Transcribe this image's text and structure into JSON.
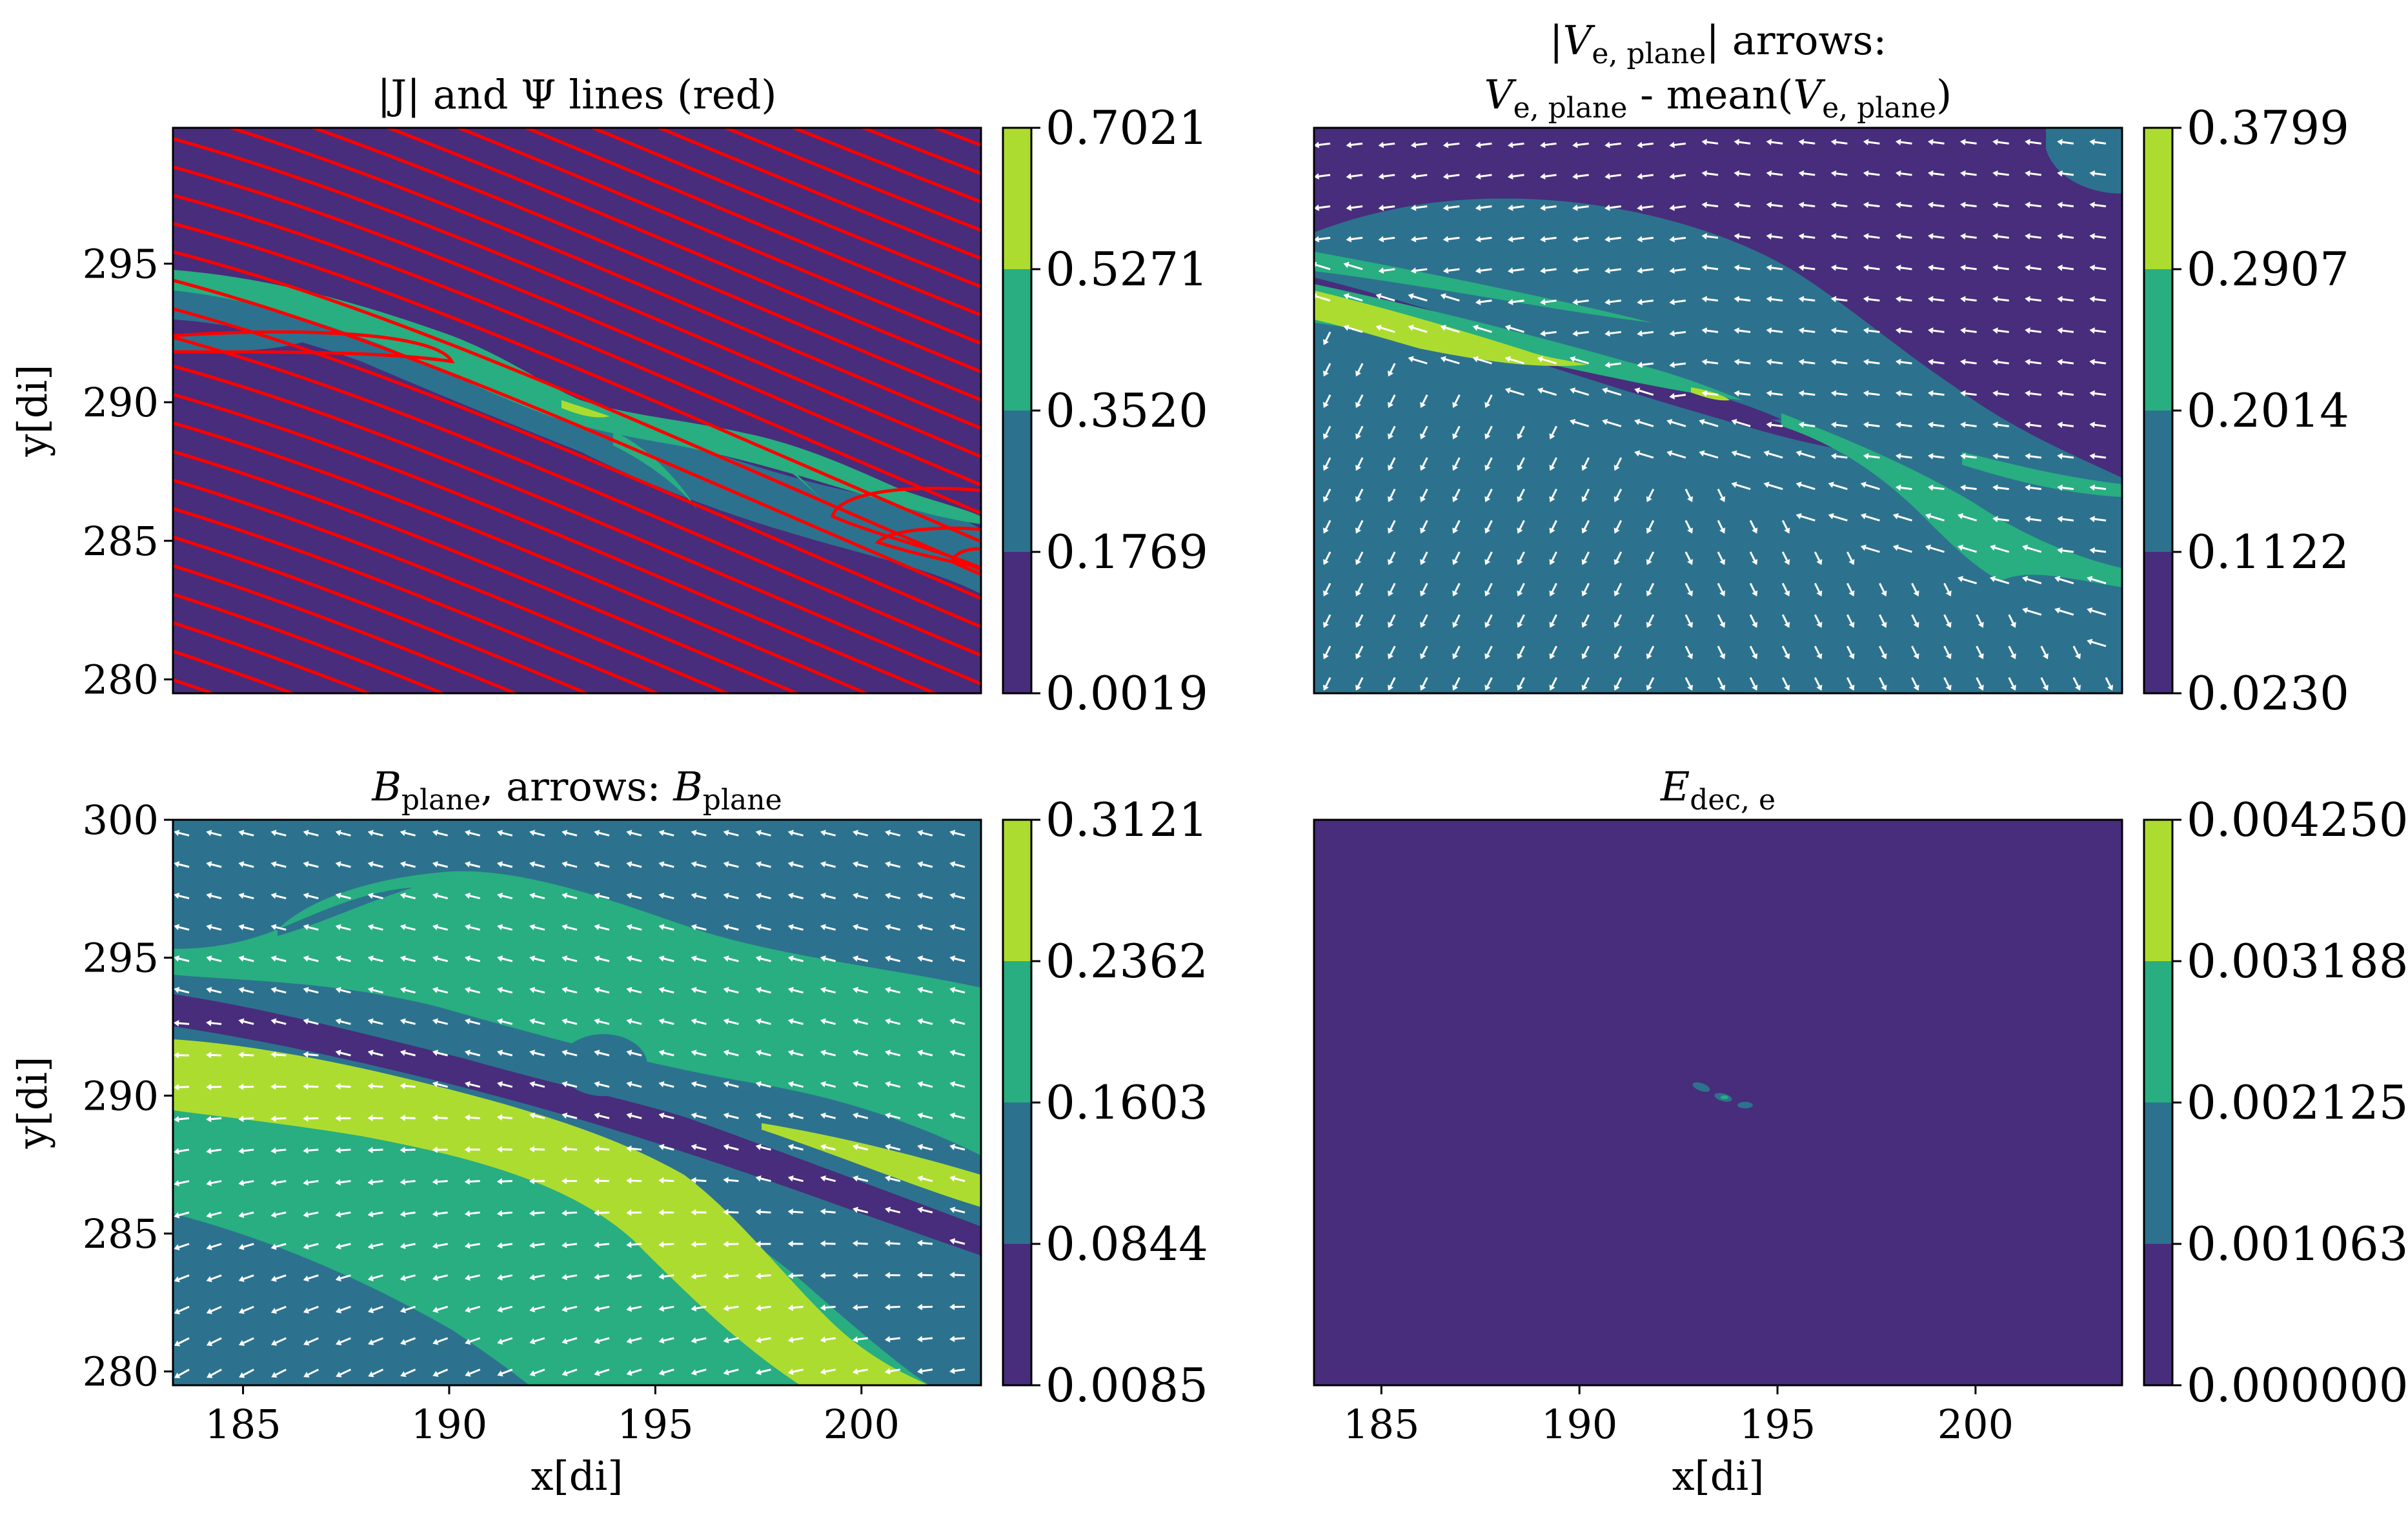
{
  "figure": {
    "colors": {
      "c0": "#472d7b",
      "c1": "#2c728e",
      "c2": "#28ae80",
      "c3": "#addc30",
      "stream": "#ff0000",
      "arrow": "#ffffff"
    }
  },
  "chart_data": [
    {
      "type": "heatmap",
      "panel": "top-left",
      "title": "|J| and Ψ lines (red)",
      "xlabel": "",
      "ylabel": "y[di]",
      "xlim": [
        183.3,
        202.9
      ],
      "ylim": [
        279.5,
        299.9
      ],
      "x_ticks": [],
      "y_ticks": [
        "280",
        "285",
        "290",
        "295"
      ],
      "colorbar_ticks": [
        "0.0019",
        "0.1769",
        "0.3520",
        "0.5271",
        "0.7021"
      ],
      "overlay": "red flux (Ψ) contour lines"
    },
    {
      "type": "heatmap",
      "panel": "top-right",
      "title": "|Ve, plane| arrows:",
      "title_line2": "Ve, plane - mean(Ve, plane)",
      "title_parts": {
        "abs_l": "|",
        "V": "V",
        "sub": "e, plane",
        "abs_r": "| arrows:",
        "line2_sub": "e, plane",
        "line2_mid": " - mean(",
        "line2_end": ")"
      },
      "xlabel": "",
      "ylabel": "",
      "xlim": [
        183.3,
        203.7
      ],
      "ylim": [
        279.5,
        299.9
      ],
      "x_ticks": [],
      "y_ticks": [],
      "colorbar_ticks": [
        "0.0230",
        "0.1122",
        "0.2014",
        "0.2907",
        "0.3799"
      ],
      "overlay": "white quiver arrows"
    },
    {
      "type": "heatmap",
      "panel": "bottom-left",
      "title": "Bplane, arrows: Bplane",
      "title_parts": {
        "B": "B",
        "sub": "plane",
        "mid": ", arrows: "
      },
      "xlabel": "x[di]",
      "ylabel": "y[di]",
      "xlim": [
        183.3,
        202.9
      ],
      "ylim": [
        279.5,
        300.0
      ],
      "x_ticks": [
        "185",
        "190",
        "195",
        "200"
      ],
      "y_ticks": [
        "280",
        "285",
        "290",
        "295",
        "300"
      ],
      "colorbar_ticks": [
        "0.0085",
        "0.0844",
        "0.1603",
        "0.2362",
        "0.3121"
      ],
      "overlay": "white quiver arrows"
    },
    {
      "type": "heatmap",
      "panel": "bottom-right",
      "title": "Edec, e",
      "title_parts": {
        "E": "E",
        "sub": "dec, e"
      },
      "xlabel": "x[di]",
      "ylabel": "",
      "xlim": [
        183.3,
        203.7
      ],
      "ylim": [
        279.5,
        300.0
      ],
      "x_ticks": [
        "185",
        "190",
        "195",
        "200"
      ],
      "y_ticks": [],
      "colorbar_ticks": [
        "0.000000",
        "0.001063",
        "0.002125",
        "0.003188",
        "0.004250"
      ]
    }
  ]
}
